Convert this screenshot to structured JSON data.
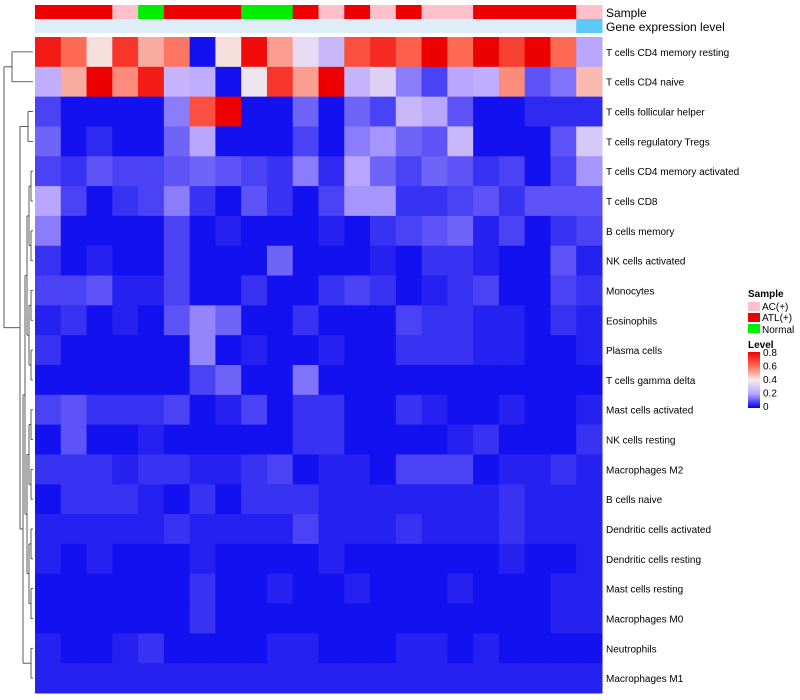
{
  "chart_data": {
    "type": "heatmap",
    "title": "",
    "annotation_rows": [
      {
        "name": "Sample"
      },
      {
        "name": "Gene expression level"
      }
    ],
    "sample_groups": [
      "ATL(+)",
      "ATL(+)",
      "ATL(+)",
      "AC(+)",
      "Normal",
      "ATL(+)",
      "ATL(+)",
      "ATL(+)",
      "Normal",
      "Normal",
      "ATL(+)",
      "AC(+)",
      "ATL(+)",
      "AC(+)",
      "ATL(+)",
      "AC(+)",
      "AC(+)",
      "ATL(+)",
      "ATL(+)",
      "ATL(+)",
      "ATL(+)",
      "AC(+)"
    ],
    "group_colors": {
      "AC(+)": "#ffc0cb",
      "ATL(+)": "#ee0000",
      "Normal": "#00ee00"
    },
    "expression_band_colors": [
      "#ddeef8",
      "#ddeef8",
      "#ddeef8",
      "#ddeef8",
      "#ddeef8",
      "#ddeef8",
      "#ddeef8",
      "#ddeef8",
      "#ddeef8",
      "#ddeef8",
      "#ddeef8",
      "#ddeef8",
      "#ddeef8",
      "#ddeef8",
      "#ddeef8",
      "#ddeef8",
      "#ddeef8",
      "#ddeef8",
      "#ddeef8",
      "#ddeef8",
      "#ddeef8",
      "#5bc8f5"
    ],
    "rows": [
      "T cells CD4 memory resting",
      "T cells CD4 naive",
      "T cells follicular helper",
      "T cells regulatory  Tregs",
      "T cells CD4 memory activated",
      "T cells CD8",
      "B cells memory",
      "NK cells activated",
      "Monocytes",
      "Eosinophils",
      "Plasma cells",
      "T cells gamma delta",
      "Mast cells activated",
      "NK cells resting",
      "Macrophages M2",
      "B cells naive",
      "Dendritic cells activated",
      "Dendritic cells resting",
      "Mast cells resting",
      "Macrophages M0",
      "Neutrophils",
      "Macrophages M1"
    ],
    "values": [
      [
        0.75,
        0.6,
        0.42,
        0.7,
        0.5,
        0.58,
        0.02,
        0.42,
        0.78,
        0.52,
        0.35,
        0.25,
        0.65,
        0.72,
        0.62,
        0.8,
        0.6,
        0.8,
        0.68,
        0.8,
        0.6,
        0.2
      ],
      [
        0.22,
        0.5,
        0.8,
        0.55,
        0.75,
        0.24,
        0.22,
        0.02,
        0.38,
        0.7,
        0.52,
        0.8,
        0.24,
        0.32,
        0.15,
        0.08,
        0.2,
        0.22,
        0.55,
        0.1,
        0.14,
        0.48
      ],
      [
        0.08,
        0.02,
        0.02,
        0.02,
        0.02,
        0.15,
        0.65,
        0.8,
        0.02,
        0.02,
        0.12,
        0.02,
        0.12,
        0.08,
        0.25,
        0.2,
        0.1,
        0.02,
        0.02,
        0.05,
        0.05,
        0.05
      ],
      [
        0.12,
        0.02,
        0.05,
        0.02,
        0.02,
        0.12,
        0.2,
        0.02,
        0.02,
        0.02,
        0.08,
        0.02,
        0.15,
        0.18,
        0.12,
        0.1,
        0.25,
        0.02,
        0.02,
        0.02,
        0.1,
        0.3
      ],
      [
        0.08,
        0.06,
        0.1,
        0.08,
        0.08,
        0.1,
        0.12,
        0.1,
        0.08,
        0.06,
        0.15,
        0.05,
        0.2,
        0.12,
        0.08,
        0.12,
        0.1,
        0.06,
        0.08,
        0.02,
        0.08,
        0.18
      ],
      [
        0.2,
        0.08,
        0.02,
        0.06,
        0.08,
        0.15,
        0.06,
        0.02,
        0.1,
        0.06,
        0.02,
        0.08,
        0.18,
        0.18,
        0.06,
        0.06,
        0.08,
        0.1,
        0.06,
        0.1,
        0.1,
        0.1
      ],
      [
        0.15,
        0.02,
        0.02,
        0.02,
        0.02,
        0.08,
        0.02,
        0.04,
        0.02,
        0.02,
        0.02,
        0.04,
        0.02,
        0.06,
        0.08,
        0.1,
        0.12,
        0.04,
        0.08,
        0.02,
        0.06,
        0.08
      ],
      [
        0.06,
        0.02,
        0.04,
        0.02,
        0.02,
        0.08,
        0.02,
        0.02,
        0.02,
        0.12,
        0.02,
        0.02,
        0.02,
        0.04,
        0.02,
        0.06,
        0.06,
        0.04,
        0.02,
        0.02,
        0.1,
        0.04
      ],
      [
        0.08,
        0.08,
        0.1,
        0.04,
        0.04,
        0.08,
        0.02,
        0.02,
        0.06,
        0.02,
        0.02,
        0.06,
        0.08,
        0.06,
        0.02,
        0.04,
        0.06,
        0.08,
        0.02,
        0.02,
        0.08,
        0.06
      ],
      [
        0.04,
        0.06,
        0.02,
        0.04,
        0.02,
        0.1,
        0.16,
        0.12,
        0.02,
        0.02,
        0.06,
        0.02,
        0.02,
        0.02,
        0.08,
        0.06,
        0.06,
        0.04,
        0.04,
        0.02,
        0.06,
        0.04
      ],
      [
        0.06,
        0.02,
        0.02,
        0.02,
        0.02,
        0.02,
        0.16,
        0.02,
        0.04,
        0.02,
        0.02,
        0.04,
        0.02,
        0.02,
        0.06,
        0.06,
        0.06,
        0.04,
        0.04,
        0.02,
        0.02,
        0.04
      ],
      [
        0.02,
        0.02,
        0.02,
        0.02,
        0.02,
        0.02,
        0.08,
        0.12,
        0.02,
        0.02,
        0.14,
        0.02,
        0.02,
        0.02,
        0.02,
        0.02,
        0.02,
        0.02,
        0.02,
        0.02,
        0.02,
        0.02
      ],
      [
        0.08,
        0.1,
        0.06,
        0.06,
        0.06,
        0.08,
        0.02,
        0.04,
        0.08,
        0.02,
        0.06,
        0.06,
        0.02,
        0.02,
        0.06,
        0.04,
        0.02,
        0.02,
        0.04,
        0.02,
        0.02,
        0.04
      ],
      [
        0.02,
        0.1,
        0.02,
        0.02,
        0.04,
        0.02,
        0.02,
        0.02,
        0.02,
        0.02,
        0.06,
        0.06,
        0.02,
        0.02,
        0.02,
        0.02,
        0.04,
        0.06,
        0.02,
        0.02,
        0.02,
        0.06
      ],
      [
        0.06,
        0.06,
        0.06,
        0.04,
        0.06,
        0.06,
        0.04,
        0.04,
        0.06,
        0.08,
        0.02,
        0.04,
        0.04,
        0.02,
        0.08,
        0.08,
        0.08,
        0.02,
        0.04,
        0.04,
        0.06,
        0.04
      ],
      [
        0.02,
        0.06,
        0.06,
        0.06,
        0.04,
        0.02,
        0.06,
        0.02,
        0.06,
        0.06,
        0.06,
        0.04,
        0.04,
        0.04,
        0.04,
        0.04,
        0.04,
        0.04,
        0.06,
        0.04,
        0.04,
        0.04
      ],
      [
        0.04,
        0.04,
        0.04,
        0.04,
        0.04,
        0.06,
        0.04,
        0.04,
        0.04,
        0.04,
        0.08,
        0.04,
        0.04,
        0.04,
        0.06,
        0.04,
        0.04,
        0.04,
        0.06,
        0.04,
        0.04,
        0.04
      ],
      [
        0.04,
        0.02,
        0.04,
        0.02,
        0.02,
        0.02,
        0.04,
        0.02,
        0.02,
        0.02,
        0.02,
        0.04,
        0.02,
        0.02,
        0.02,
        0.02,
        0.02,
        0.02,
        0.04,
        0.02,
        0.02,
        0.04
      ],
      [
        0.02,
        0.02,
        0.02,
        0.02,
        0.02,
        0.02,
        0.06,
        0.02,
        0.02,
        0.04,
        0.02,
        0.02,
        0.04,
        0.02,
        0.02,
        0.02,
        0.04,
        0.02,
        0.02,
        0.02,
        0.04,
        0.04
      ],
      [
        0.02,
        0.02,
        0.02,
        0.02,
        0.02,
        0.02,
        0.06,
        0.02,
        0.02,
        0.02,
        0.02,
        0.02,
        0.02,
        0.02,
        0.02,
        0.02,
        0.02,
        0.02,
        0.02,
        0.02,
        0.04,
        0.04
      ],
      [
        0.04,
        0.02,
        0.02,
        0.04,
        0.06,
        0.02,
        0.02,
        0.02,
        0.02,
        0.04,
        0.04,
        0.02,
        0.02,
        0.02,
        0.04,
        0.04,
        0.02,
        0.04,
        0.02,
        0.02,
        0.02,
        0.02
      ],
      [
        0.04,
        0.04,
        0.04,
        0.04,
        0.04,
        0.04,
        0.04,
        0.04,
        0.04,
        0.04,
        0.04,
        0.04,
        0.04,
        0.04,
        0.04,
        0.04,
        0.04,
        0.04,
        0.04,
        0.04,
        0.04,
        0.04
      ]
    ],
    "color_scale": {
      "min": 0,
      "max": 0.8,
      "colors": [
        "#0000ee",
        "#b9a6ff",
        "#f5ecec",
        "#ff6a55",
        "#ee0000"
      ]
    },
    "legend": {
      "sample_title": "Sample",
      "sample_items": [
        "AC(+)",
        "ATL(+)",
        "Normal"
      ],
      "level_title": "Level",
      "level_ticks": [
        "0.8",
        "0.6",
        "0.4",
        "0.2",
        "0"
      ]
    }
  }
}
